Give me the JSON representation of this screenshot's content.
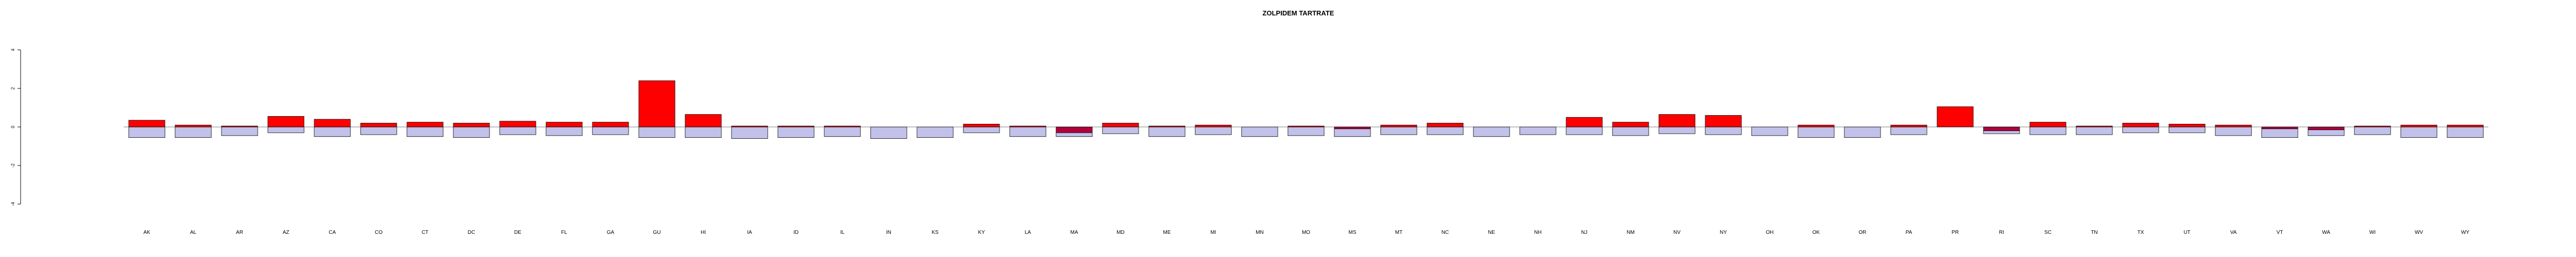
{
  "chart_data": {
    "type": "bar",
    "title": "ZOLPIDEM TARTRATE",
    "xlabel": "",
    "ylabel": "",
    "ylim": [
      -4,
      4
    ],
    "yticks": [
      -4,
      -2,
      0,
      2,
      4
    ],
    "ytick_labels": [
      "-4",
      "-2",
      "0",
      "2",
      "4"
    ],
    "grid": false,
    "legend": "none",
    "categories": [
      "AK",
      "AL",
      "AR",
      "AZ",
      "CA",
      "CO",
      "CT",
      "DC",
      "DE",
      "FL",
      "GA",
      "GU",
      "HI",
      "IA",
      "ID",
      "IL",
      "IN",
      "KS",
      "KY",
      "LA",
      "MA",
      "MD",
      "ME",
      "MI",
      "MN",
      "MO",
      "MS",
      "MT",
      "NC",
      "NE",
      "NH",
      "NJ",
      "NM",
      "NV",
      "NY",
      "OH",
      "OK",
      "OR",
      "PA",
      "PR",
      "RI",
      "SC",
      "TN",
      "TX",
      "UT",
      "VA",
      "VT",
      "WA",
      "WI",
      "WV",
      "WY"
    ],
    "series": [
      {
        "values": [
          0.35,
          0.1,
          0.05,
          0.55,
          0.4,
          0.2,
          0.25,
          0.2,
          0.3,
          0.25,
          0.25,
          2.4,
          0.65,
          0.05,
          0.05,
          0.05,
          0.0,
          0.0,
          0.15,
          0.05,
          -0.3,
          0.2,
          0.05,
          0.1,
          0.0,
          0.05,
          -0.1,
          0.1,
          0.2,
          0.0,
          0.0,
          0.5,
          0.25,
          0.65,
          0.6,
          0.0,
          0.1,
          0.0,
          0.1,
          1.05,
          -0.2,
          0.25,
          0.05,
          0.2,
          0.15,
          0.1,
          -0.1,
          -0.15,
          0.05,
          0.1,
          0.1
        ]
      },
      {
        "values": [
          -0.55,
          -0.55,
          -0.45,
          -0.3,
          -0.5,
          -0.4,
          -0.5,
          -0.55,
          -0.4,
          -0.45,
          -0.4,
          -0.55,
          -0.55,
          -0.6,
          -0.55,
          -0.5,
          -0.6,
          -0.55,
          -0.3,
          -0.5,
          -0.5,
          -0.35,
          -0.5,
          -0.4,
          -0.5,
          -0.45,
          -0.5,
          -0.4,
          -0.4,
          -0.5,
          -0.4,
          -0.4,
          -0.45,
          -0.35,
          -0.4,
          -0.45,
          -0.55,
          -0.55,
          -0.4,
          0.0,
          -0.35,
          -0.4,
          -0.4,
          -0.3,
          -0.3,
          -0.45,
          -0.55,
          -0.45,
          -0.4,
          -0.55,
          -0.55
        ]
      }
    ],
    "colors": {
      "positive": "#ff0000",
      "negative": "#c1c1ea",
      "negative_small": "#b0003c",
      "stroke": "#000000"
    }
  }
}
